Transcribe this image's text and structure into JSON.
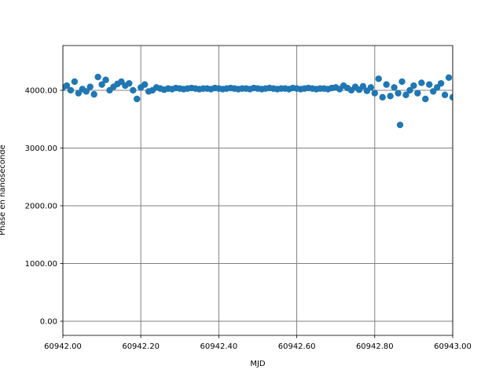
{
  "chart_data": {
    "type": "scatter",
    "xlabel": "MJD",
    "ylabel": "Phase en nanoseconde",
    "color": "#1f77b4",
    "grid": true,
    "grid_color": "#808080",
    "xlim": [
      60942.0,
      60943.0
    ],
    "xticks": [
      {
        "value": 60942.0,
        "label": "60942.00"
      },
      {
        "value": 60942.2,
        "label": "60942.20"
      },
      {
        "value": 60942.4,
        "label": "60942.40"
      },
      {
        "value": 60942.6,
        "label": "60942.60"
      },
      {
        "value": 60942.8,
        "label": "60942.80"
      },
      {
        "value": 60943.0,
        "label": "60943.00"
      }
    ],
    "ylim": [
      -245,
      4775
    ],
    "yticks": [
      {
        "value": 0,
        "label": "0.00"
      },
      {
        "value": 1000,
        "label": "1000.00"
      },
      {
        "value": 2000,
        "label": "2000.00"
      },
      {
        "value": 3000,
        "label": "3000.00"
      },
      {
        "value": 4000,
        "label": "4000.00"
      }
    ],
    "x": [
      60942.0,
      60942.01,
      60942.02,
      60942.03,
      60942.04,
      60942.05,
      60942.06,
      60942.07,
      60942.08,
      60942.09,
      60942.1,
      60942.11,
      60942.12,
      60942.13,
      60942.14,
      60942.15,
      60942.16,
      60942.17,
      60942.18,
      60942.19,
      60942.2,
      60942.21,
      60942.22,
      60942.23,
      60942.24,
      60942.25,
      60942.26,
      60942.27,
      60942.28,
      60942.29,
      60942.3,
      60942.31,
      60942.32,
      60942.33,
      60942.34,
      60942.35,
      60942.36,
      60942.37,
      60942.38,
      60942.39,
      60942.4,
      60942.41,
      60942.42,
      60942.43,
      60942.44,
      60942.45,
      60942.46,
      60942.47,
      60942.48,
      60942.49,
      60942.5,
      60942.51,
      60942.52,
      60942.53,
      60942.54,
      60942.55,
      60942.56,
      60942.57,
      60942.58,
      60942.59,
      60942.6,
      60942.61,
      60942.62,
      60942.63,
      60942.64,
      60942.65,
      60942.66,
      60942.67,
      60942.68,
      60942.69,
      60942.7,
      60942.71,
      60942.72,
      60942.73,
      60942.74,
      60942.75,
      60942.76,
      60942.77,
      60942.78,
      60942.79,
      60942.8,
      60942.81,
      60942.82,
      60942.83,
      60942.84,
      60942.85,
      60942.86,
      60942.865,
      60942.87,
      60942.88,
      60942.89,
      60942.9,
      60942.91,
      60942.92,
      60942.93,
      60942.94,
      60942.95,
      60942.96,
      60942.97,
      60942.98,
      60942.99,
      60943.0
    ],
    "values": [
      4050,
      4080,
      4000,
      4150,
      3950,
      4020,
      3980,
      4060,
      3930,
      4230,
      4100,
      4180,
      4000,
      4060,
      4110,
      4150,
      4080,
      4120,
      4000,
      3850,
      4050,
      4100,
      3980,
      4000,
      4050,
      4030,
      4010,
      4030,
      4020,
      4040,
      4030,
      4020,
      4030,
      4040,
      4030,
      4020,
      4030,
      4030,
      4020,
      4040,
      4030,
      4020,
      4030,
      4040,
      4030,
      4020,
      4030,
      4030,
      4020,
      4040,
      4030,
      4020,
      4030,
      4040,
      4030,
      4020,
      4030,
      4030,
      4020,
      4040,
      4030,
      4020,
      4030,
      4040,
      4030,
      4020,
      4030,
      4030,
      4020,
      4040,
      4050,
      4020,
      4080,
      4040,
      4000,
      4060,
      4010,
      4070,
      3990,
      4050,
      3950,
      4200,
      3880,
      4100,
      3900,
      4050,
      3950,
      3400,
      4150,
      3920,
      4000,
      4080,
      3950,
      4130,
      3850,
      4100,
      3980,
      4050,
      4120,
      3920,
      4220,
      3880
    ]
  }
}
